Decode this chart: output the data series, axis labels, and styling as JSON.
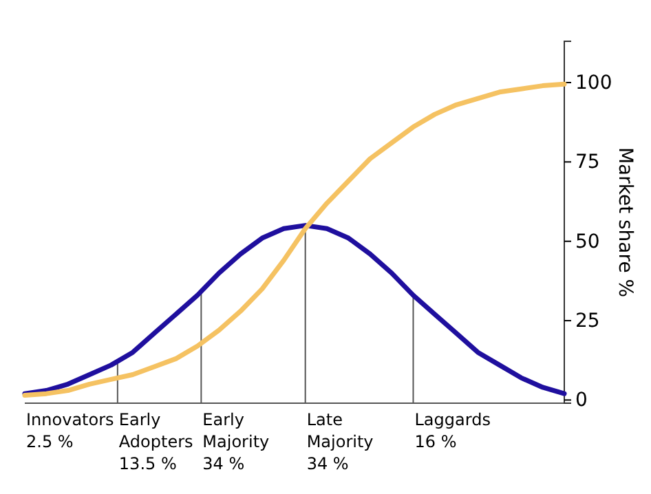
{
  "chart_data": {
    "type": "line",
    "ylabel": "Market share %",
    "categories": [
      null,
      null,
      null,
      null,
      null,
      null,
      null,
      null,
      null,
      null,
      null,
      null,
      null,
      null,
      null,
      null,
      null,
      null,
      null,
      null,
      null,
      null,
      null,
      null,
      null,
      null
    ],
    "series": [
      {
        "color": "#1f0f9e",
        "values": [
          2,
          3,
          5,
          8,
          11,
          15,
          21,
          27,
          33,
          40,
          46,
          51,
          54,
          55,
          54,
          51,
          46,
          40,
          33,
          27,
          21,
          15,
          11,
          7,
          4,
          2
        ]
      },
      {
        "color": "#f5c262",
        "values": [
          1.5,
          2,
          3,
          5,
          6.5,
          8,
          10.5,
          13,
          17,
          22,
          28,
          35,
          44,
          54,
          62,
          69,
          76,
          81,
          86,
          90,
          93,
          95,
          97,
          98,
          99,
          99.5
        ]
      }
    ],
    "ylim": [
      -1,
      113
    ],
    "yticks": [
      0,
      25,
      50,
      75,
      100
    ],
    "tick_labels": "y",
    "grid": false,
    "line_style": "solid",
    "marker": "none",
    "annotations": [
      "Innovators\n2.5 %",
      "Early\nAdopters\n13.5 %",
      "Early\nMajority\n34 %",
      "Late\nMajority\n34 %",
      "Laggards\n16 %"
    ]
  }
}
